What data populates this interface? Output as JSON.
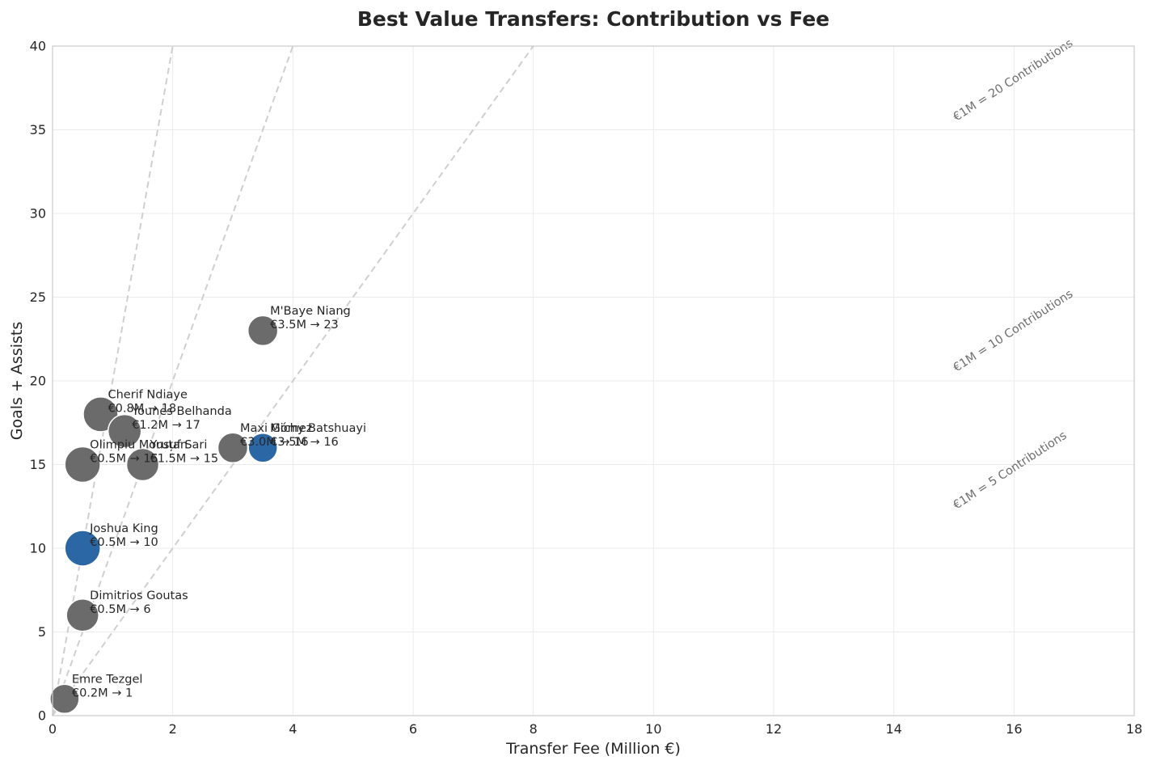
{
  "chart_data": {
    "type": "scatter",
    "title": "Best Value Transfers: Contribution vs Fee",
    "xlabel": "Transfer Fee (Million €)",
    "ylabel": "Goals + Assists",
    "xlim": [
      0,
      18
    ],
    "ylim": [
      0,
      40
    ],
    "xticks": [
      "0",
      "2",
      "4",
      "6",
      "8",
      "10",
      "12",
      "14",
      "16",
      "18"
    ],
    "yticks": [
      "0",
      "5",
      "10",
      "15",
      "20",
      "25",
      "30",
      "35",
      "40"
    ],
    "grid": true,
    "colors": {
      "default": "#6b6b6b",
      "highlight": "#2b67a4"
    },
    "points": [
      {
        "name": "Emre Tezgel",
        "label": "€0.2M → 1",
        "x": 0.2,
        "y": 1,
        "size": 0.6,
        "highlight": false
      },
      {
        "name": "Dimitrios Goutas",
        "label": "€0.5M → 6",
        "x": 0.5,
        "y": 6,
        "size": 0.8,
        "highlight": false
      },
      {
        "name": "Joshua King",
        "label": "€0.5M → 10",
        "x": 0.5,
        "y": 10,
        "size": 1.0,
        "highlight": true
      },
      {
        "name": "Olimpiu Moruțan",
        "label": "€0.5M → 15",
        "x": 0.5,
        "y": 15,
        "size": 1.0,
        "highlight": false
      },
      {
        "name": "Cherif Ndiaye",
        "label": "€0.8M → 18",
        "x": 0.8,
        "y": 18,
        "size": 0.95,
        "highlight": false
      },
      {
        "name": "Younes Belhanda",
        "label": "€1.2M → 17",
        "x": 1.2,
        "y": 17,
        "size": 0.85,
        "highlight": false
      },
      {
        "name": "Yusuf Sari",
        "label": "€1.5M → 15",
        "x": 1.5,
        "y": 15,
        "size": 0.8,
        "highlight": false
      },
      {
        "name": "Maxi Gómez",
        "label": "€3.0M → 16",
        "x": 3.0,
        "y": 16,
        "size": 0.65,
        "highlight": false
      },
      {
        "name": "Michy Batshuayi",
        "label": "€3.5M → 16",
        "x": 3.5,
        "y": 16,
        "size": 0.6,
        "highlight": true
      },
      {
        "name": "M'Baye Niang",
        "label": "€3.5M → 23",
        "x": 3.5,
        "y": 23,
        "size": 0.65,
        "highlight": false
      }
    ],
    "reference_lines": [
      {
        "label": "€1M = 20 Contributions",
        "slope": 20
      },
      {
        "label": "€1M = 10 Contributions",
        "slope": 10
      },
      {
        "label": "€1M = 5 Contributions",
        "slope": 5
      }
    ]
  }
}
